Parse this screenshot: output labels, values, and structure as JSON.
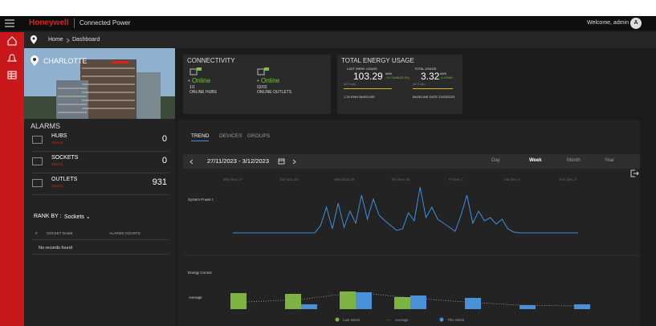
{
  "header": {
    "brand": "Honeywell",
    "product": "Connected Power",
    "welcome": "Welcome, admin",
    "avatar": "A"
  },
  "breadcrumb": [
    "Home",
    "Dashboard"
  ],
  "location": "CHARLOTTE",
  "connectivity": {
    "title": "CONNECTIVITY",
    "hubs": {
      "status": "Online",
      "count": "1/1",
      "label": "ONLINE HUBS"
    },
    "outlets": {
      "status": "Online",
      "count": "02/02",
      "label": "ONLINE OUTLETS"
    }
  },
  "energy": {
    "title": "TOTAL ENERGY USAGE",
    "last_week": {
      "label": "LAST WEEK USAGE",
      "value": "103.29",
      "unit": "kWh",
      "delta": "↑24.71kWh(33.1%)",
      "actual": "ACTUAL"
    },
    "total": {
      "label": "TOTAL USAGE",
      "value": "3.32",
      "unit": "kWh",
      "delta": "↑1.47kWh",
      "actual": "ACTUAL"
    },
    "baseline": "1.29 KWH BASELINE",
    "baseline_date": "BASELINE DATE 23/03/2023"
  },
  "alarms": {
    "title": "ALARMS",
    "rows": [
      {
        "name": "HUBS",
        "sub": "Alarms",
        "count": "0"
      },
      {
        "name": "SOCKETS",
        "sub": "Alarms",
        "count": "0"
      },
      {
        "name": "OUTLETS",
        "sub": "Alarms",
        "count": "931"
      }
    ]
  },
  "rank": {
    "label": "RANK BY :",
    "value": "Sockets",
    "columns": [
      "#",
      "SOCKET NAME",
      "ALARMS COUNTS"
    ],
    "empty": "No records found"
  },
  "tabs": [
    "TREND",
    "DEVICES",
    "GROUPS"
  ],
  "date_range": "27/11/2023 - 3/12/2023",
  "periods": [
    "Day",
    "Week",
    "Month",
    "Year"
  ],
  "chart_data": [
    {
      "type": "line",
      "y_label": "System Power Usage (kW)",
      "day_labels": [
        "Mon Nov 27",
        "Tue Nov 28",
        "Wed Nov 29",
        "Thu Nov 30",
        "Fri Dec 1",
        "Sat Dec 2",
        "Sun Dec 3"
      ],
      "series": [
        {
          "color": "#3d8fe0",
          "values": [
            3,
            3,
            3,
            3,
            3,
            3,
            3,
            3,
            3,
            3,
            3,
            3,
            3,
            3,
            3,
            12,
            35,
            8,
            40,
            10,
            30,
            15,
            50,
            20,
            45,
            25,
            18,
            12,
            6,
            8,
            28,
            18,
            60,
            22,
            35,
            20,
            15,
            10,
            5,
            25,
            50,
            15,
            30,
            18,
            22,
            14,
            20,
            8,
            4,
            3,
            3,
            3,
            3,
            3,
            3,
            3,
            3,
            3,
            3,
            3
          ]
        }
      ]
    },
    {
      "type": "bar",
      "y_label": "Energy Consumption (kWh)",
      "average_label": "Average",
      "series": [
        {
          "name": "Last Week",
          "color": "#7cb342",
          "values": [
            20,
            19,
            22,
            15,
            null,
            null,
            null
          ]
        },
        {
          "name": "Average",
          "color": "#aaaaaa",
          "values": [
            9,
            12,
            21,
            14,
            9,
            5,
            4
          ]
        },
        {
          "name": "This Week",
          "color": "#4a90d9",
          "values": [
            null,
            6,
            21,
            17,
            14,
            5,
            6
          ]
        }
      ]
    }
  ]
}
